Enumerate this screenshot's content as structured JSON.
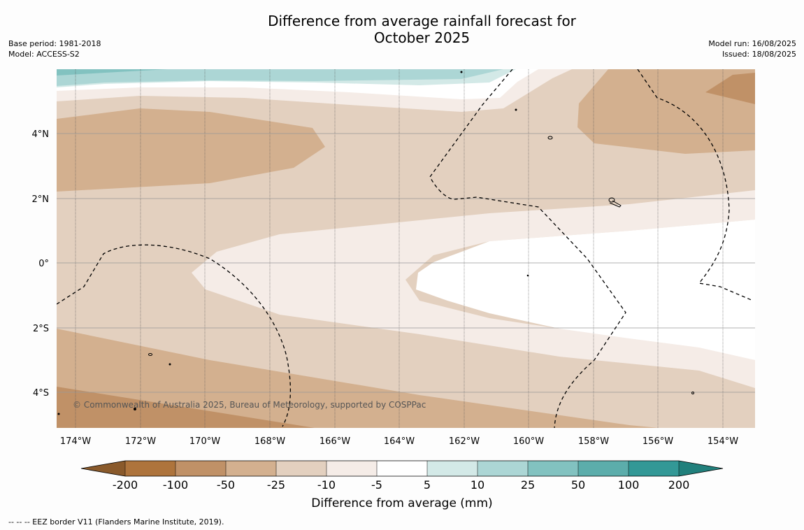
{
  "title": {
    "line1": "Difference from average rainfall forecast for",
    "line2": "October 2025"
  },
  "info_left": {
    "base_period": "Base period: 1981-2018",
    "model": "Model: ACCESS-S2"
  },
  "info_right": {
    "model_run": "Model run: 16/08/2025",
    "issued": "Issued: 18/08/2025"
  },
  "copyright": "© Commonwealth of Australia 2025, Bureau of Meteorology, supported by COSPPac",
  "map": {
    "lon_ticks": [
      "174°W",
      "172°W",
      "170°W",
      "168°W",
      "166°W",
      "164°W",
      "162°W",
      "160°W",
      "158°W",
      "156°W",
      "154°W"
    ],
    "lat_ticks": [
      "4°N",
      "2°N",
      "0°",
      "2°S",
      "4°S"
    ],
    "lon_range": [
      -174.6,
      -153.1
    ],
    "lat_range": [
      -5.1,
      6.0
    ],
    "shading_legend": "rainfall difference from average (mm), brown = below average, teal = above average",
    "eez_border_style": "dashed"
  },
  "colorbar": {
    "label": "Difference from average (mm)",
    "tick_labels": [
      "-200",
      "-100",
      "-50",
      "-25",
      "-10",
      "-5",
      "5",
      "10",
      "25",
      "50",
      "100",
      "200"
    ],
    "colors": {
      "below_min": "#8a5a2b",
      "b_200_100": "#ae743c",
      "b_100_50": "#c09167",
      "b_50_25": "#d3b08f",
      "b_25_10": "#e3d0bf",
      "b_10_5": "#f5ece7",
      "b_5_5": "#ffffff",
      "a_5_10": "#d3e9e7",
      "a_10_25": "#acd6d5",
      "a_25_50": "#82c2c0",
      "a_50_100": "#5cadab",
      "a_100_200": "#339896",
      "above_max": "#21807c"
    }
  },
  "footnote": "--  --  -- EEZ border V11 (Flanders Marine Institute, 2019)."
}
